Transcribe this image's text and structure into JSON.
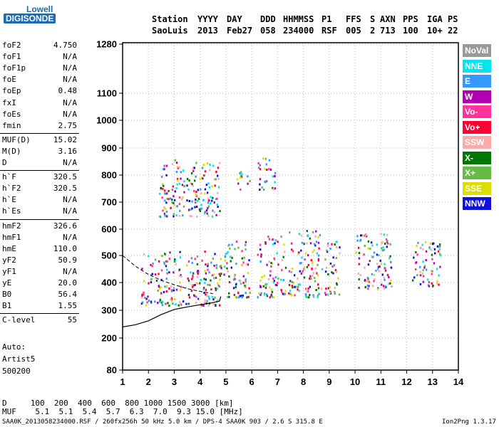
{
  "logo": {
    "line1": "Lowell",
    "line2": "DIGISONDE"
  },
  "header": {
    "labels": [
      "Station",
      "YYYY",
      "DAY",
      "DDD",
      "HHMMSS",
      "P1",
      "FFS",
      "S",
      "AXN",
      "PPS",
      "IGA",
      "PS"
    ],
    "values": [
      "SaoLuis",
      "2013",
      "Feb27",
      "058",
      "234000",
      "RSF",
      "005",
      "2",
      "713",
      "100",
      "10+",
      "22"
    ]
  },
  "params": [
    {
      "name": "foF2",
      "value": "4.750"
    },
    {
      "name": "foF1",
      "value": "N/A"
    },
    {
      "name": "foF1p",
      "value": "N/A"
    },
    {
      "name": "foE",
      "value": "N/A"
    },
    {
      "name": "foEp",
      "value": "0.48"
    },
    {
      "name": "fxI",
      "value": "N/A"
    },
    {
      "name": "foEs",
      "value": "N/A"
    },
    {
      "name": "fmin",
      "value": "2.75"
    },
    {
      "name": "MUF(D)",
      "value": "15.02"
    },
    {
      "name": "M(D)",
      "value": "3.16"
    },
    {
      "name": "D",
      "value": "N/A"
    },
    {
      "name": "h`F",
      "value": "320.5"
    },
    {
      "name": "h`F2",
      "value": "320.5"
    },
    {
      "name": "h`E",
      "value": "N/A"
    },
    {
      "name": "h`Es",
      "value": "N/A"
    },
    {
      "name": "hmF2",
      "value": "326.6"
    },
    {
      "name": "hmF1",
      "value": "N/A"
    },
    {
      "name": "hmE",
      "value": "110.0"
    },
    {
      "name": "yF2",
      "value": "50.9"
    },
    {
      "name": "yF1",
      "value": "N/A"
    },
    {
      "name": "yE",
      "value": "20.0"
    },
    {
      "name": "B0",
      "value": "56.4"
    },
    {
      "name": "B1",
      "value": "1.55"
    },
    {
      "name": "C-level",
      "value": "55"
    }
  ],
  "auto": {
    "line1": "Auto:",
    "line2": "Artist5",
    "line3": "500200"
  },
  "legend": [
    {
      "label": "NoVal",
      "color": "#999999"
    },
    {
      "label": "NNE",
      "color": "#00e5ee"
    },
    {
      "label": "E",
      "color": "#3399ff"
    },
    {
      "label": "W",
      "color": "#b000b0"
    },
    {
      "label": "Vo-",
      "color": "#ff3399"
    },
    {
      "label": "Vo+",
      "color": "#ff0033"
    },
    {
      "label": "SSW",
      "color": "#ffaaaa"
    },
    {
      "label": "X-",
      "color": "#007700"
    },
    {
      "label": "X+",
      "color": "#66bb44"
    },
    {
      "label": "SSE",
      "color": "#dddd00"
    },
    {
      "label": "NNW",
      "color": "#1111dd"
    }
  ],
  "footer": {
    "d_row": "D     100  200  400  600  800 1000 1500 3000 [km]",
    "muf_row": "MUF    5.1  5.1  5.4  5.7  6.3  7.0  9.3 15.0 [MHz]",
    "file_line": "SAA0K_2013058234000.RSF / 260fx256h 50 kHz 5.0 km / DPS-4 SAA0K 903 / 2.6 S 315.8 E",
    "version": "Ion2Png 1.3.17"
  },
  "chart_data": {
    "type": "scatter",
    "title": "",
    "xlabel": "",
    "ylabel": "",
    "xlim": [
      1,
      14
    ],
    "ylim": [
      80,
      1280
    ],
    "xticks": [
      1,
      2,
      3,
      4,
      5,
      6,
      7,
      8,
      9,
      10,
      11,
      12,
      13,
      14
    ],
    "yticks": [
      80,
      200,
      300,
      400,
      500,
      600,
      700,
      800,
      900,
      1000,
      1100,
      1280
    ],
    "grid": true,
    "legend_position": "right",
    "echo_clusters": [
      {
        "x": [
          1.7,
          4.8
        ],
        "y": [
          320,
          520
        ]
      },
      {
        "x": [
          2.4,
          4.8
        ],
        "y": [
          650,
          860
        ]
      },
      {
        "x": [
          4.9,
          5.9
        ],
        "y": [
          350,
          560
        ]
      },
      {
        "x": [
          5.4,
          5.9
        ],
        "y": [
          750,
          820
        ]
      },
      {
        "x": [
          6.2,
          7.0
        ],
        "y": [
          350,
          580
        ]
      },
      {
        "x": [
          6.2,
          6.9
        ],
        "y": [
          750,
          870
        ]
      },
      {
        "x": [
          7.1,
          7.3
        ],
        "y": [
          360,
          580
        ]
      },
      {
        "x": [
          7.4,
          8.7
        ],
        "y": [
          350,
          600
        ]
      },
      {
        "x": [
          8.8,
          9.4
        ],
        "y": [
          360,
          560
        ]
      },
      {
        "x": [
          10.0,
          11.4
        ],
        "y": [
          380,
          590
        ]
      },
      {
        "x": [
          12.2,
          13.3
        ],
        "y": [
          390,
          560
        ]
      }
    ],
    "profile_curve": {
      "x": [
        1.0,
        1.5,
        2.0,
        2.5,
        3.0,
        3.5,
        4.0,
        4.4,
        4.75,
        4.8
      ],
      "y": [
        240,
        248,
        262,
        285,
        303,
        312,
        320,
        326,
        333,
        350
      ]
    },
    "dashed_curve": {
      "x": [
        1.0,
        1.5,
        2.0,
        2.5,
        3.0,
        3.5,
        4.0,
        4.5
      ],
      "y": [
        500,
        460,
        430,
        408,
        392,
        378,
        368,
        360
      ]
    }
  }
}
